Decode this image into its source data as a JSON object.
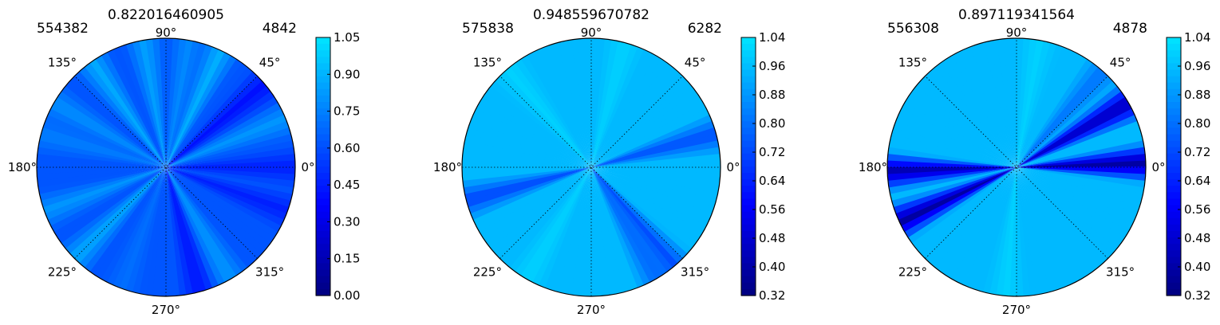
{
  "chart_data": [
    {
      "type": "heatmap",
      "projection": "polar",
      "title": "0.822016460905",
      "corner_left": "554382",
      "corner_right": "4842",
      "theta_labels": [
        "0°",
        "45°",
        "90°",
        "135°",
        "180°",
        "225°",
        "270°",
        "315°"
      ],
      "colorbar": {
        "ticks": [
          "0.00",
          "0.15",
          "0.30",
          "0.45",
          "0.60",
          "0.75",
          "0.90",
          "1.05"
        ],
        "range": [
          0.0,
          1.05
        ],
        "colormap": "jet-lower-half"
      },
      "base_value": 0.62,
      "streaks": [
        {
          "angle": 0,
          "value": 0.45
        },
        {
          "angle": 22,
          "value": 0.82
        },
        {
          "angle": 40,
          "value": 0.4
        },
        {
          "angle": 65,
          "value": 0.9
        },
        {
          "angle": 80,
          "value": 0.78
        },
        {
          "angle": 100,
          "value": 0.85
        },
        {
          "angle": 125,
          "value": 0.88
        },
        {
          "angle": 150,
          "value": 0.8
        },
        {
          "angle": 165,
          "value": 0.75
        },
        {
          "angle": 200,
          "value": 0.82
        },
        {
          "angle": 225,
          "value": 0.88
        },
        {
          "angle": 250,
          "value": 0.7
        },
        {
          "angle": 285,
          "value": 0.42
        },
        {
          "angle": 300,
          "value": 0.82
        },
        {
          "angle": 340,
          "value": 0.45
        }
      ]
    },
    {
      "type": "heatmap",
      "projection": "polar",
      "title": "0.948559670782",
      "corner_left": "575838",
      "corner_right": "6282",
      "theta_labels": [
        "0°",
        "45°",
        "90°",
        "135°",
        "180°",
        "225°",
        "270°",
        "315°"
      ],
      "colorbar": {
        "ticks": [
          "0.32",
          "0.40",
          "0.48",
          "0.56",
          "0.64",
          "0.72",
          "0.80",
          "0.88",
          "0.96",
          "1.04"
        ],
        "range": [
          0.32,
          1.04
        ],
        "colormap": "jet-lower-half"
      },
      "base_value": 0.95,
      "streaks": [
        {
          "angle": 15,
          "value": 0.72
        },
        {
          "angle": 75,
          "value": 1.0
        },
        {
          "angle": 195,
          "value": 0.7
        },
        {
          "angle": 300,
          "value": 0.78
        },
        {
          "angle": 310,
          "value": 0.72
        },
        {
          "angle": 240,
          "value": 1.0
        },
        {
          "angle": 130,
          "value": 1.0
        }
      ]
    },
    {
      "type": "heatmap",
      "projection": "polar",
      "title": "0.897119341564",
      "corner_left": "556308",
      "corner_right": "4878",
      "theta_labels": [
        "0°",
        "45°",
        "90°",
        "135°",
        "180°",
        "225°",
        "270°",
        "315°"
      ],
      "colorbar": {
        "ticks": [
          "0.32",
          "0.40",
          "0.48",
          "0.56",
          "0.64",
          "0.72",
          "0.80",
          "0.88",
          "0.96",
          "1.04"
        ],
        "range": [
          0.32,
          1.04
        ],
        "colormap": "jet-lower-half"
      },
      "base_value": 0.95,
      "streaks": [
        {
          "angle": 2,
          "value": 0.36
        },
        {
          "angle": 30,
          "value": 0.4
        },
        {
          "angle": 48,
          "value": 0.8
        },
        {
          "angle": 182,
          "value": 0.4
        },
        {
          "angle": 205,
          "value": 0.36
        },
        {
          "angle": 80,
          "value": 1.0
        },
        {
          "angle": 265,
          "value": 1.0
        }
      ]
    }
  ]
}
